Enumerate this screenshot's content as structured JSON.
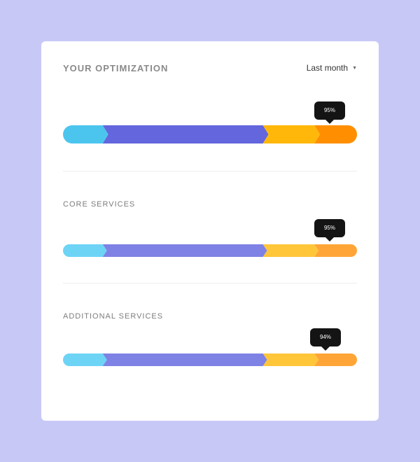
{
  "card": {
    "title": "YOUR OPTIMIZATION",
    "period_select": {
      "selected": "Last month"
    }
  },
  "bars": [
    {
      "label": "",
      "percent_label": "95%",
      "percent": 95,
      "segments": [
        {
          "color": "#4cc5ee",
          "share": 13.5
        },
        {
          "color": "#6366dc",
          "share": 54.5
        },
        {
          "color": "#ffb80a",
          "share": 17.5
        },
        {
          "color": "#ff8f00",
          "share": 14.5
        }
      ]
    },
    {
      "label": "CORE SERVICES",
      "percent_label": "95%",
      "percent": 95,
      "segments": [
        {
          "color": "#6dd4f6",
          "share": 13.5
        },
        {
          "color": "#7e82e4",
          "share": 54.5
        },
        {
          "color": "#ffc63a",
          "share": 17.5
        },
        {
          "color": "#ffa537",
          "share": 14.5
        }
      ]
    },
    {
      "label": "ADDITIONAL SERVICES",
      "percent_label": "94%",
      "percent": 94,
      "segments": [
        {
          "color": "#6dd4f6",
          "share": 13.5
        },
        {
          "color": "#7e82e4",
          "share": 54.5
        },
        {
          "color": "#ffc63a",
          "share": 17.5
        },
        {
          "color": "#ffa537",
          "share": 14.5
        }
      ]
    }
  ]
}
